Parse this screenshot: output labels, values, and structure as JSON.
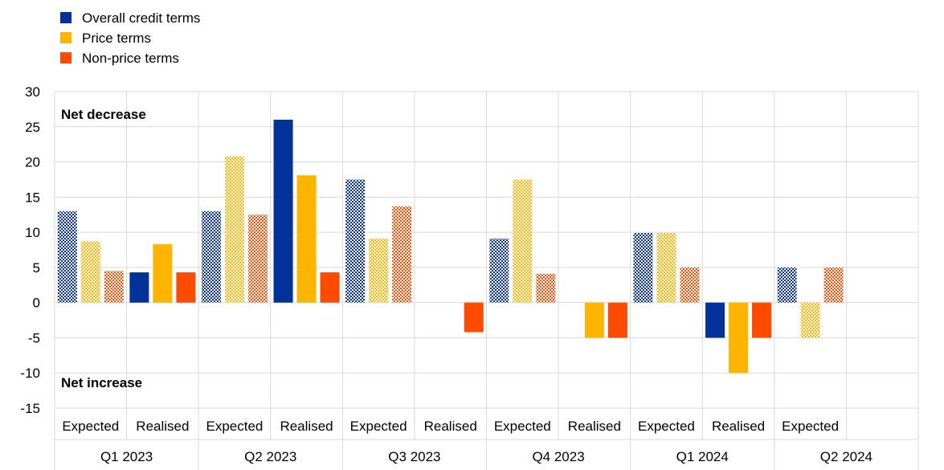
{
  "chart_data": {
    "type": "bar",
    "title": "",
    "xlabel": "",
    "ylabel": "",
    "ylim": [
      -15,
      30
    ],
    "yticks": [
      30,
      25,
      20,
      15,
      10,
      5,
      0,
      -5,
      -10,
      -15
    ],
    "legend": {
      "placement": "top-left"
    },
    "grid": true,
    "annotations": {
      "top": "Net decrease",
      "bottom": "Net increase"
    },
    "quarters": [
      "Q1 2023",
      "Q2 2023",
      "Q3 2023",
      "Q4 2023",
      "Q1 2024",
      "Q2 2024"
    ],
    "categories": [
      {
        "quarter": "Q1 2023",
        "label": "Expected",
        "pattern": true
      },
      {
        "quarter": "Q1 2023",
        "label": "Realised",
        "pattern": false
      },
      {
        "quarter": "Q2 2023",
        "label": "Expected",
        "pattern": true
      },
      {
        "quarter": "Q2 2023",
        "label": "Realised",
        "pattern": false
      },
      {
        "quarter": "Q3 2023",
        "label": "Expected",
        "pattern": true
      },
      {
        "quarter": "Q3 2023",
        "label": "Realised",
        "pattern": false
      },
      {
        "quarter": "Q4 2023",
        "label": "Expected",
        "pattern": true
      },
      {
        "quarter": "Q4 2023",
        "label": "Realised",
        "pattern": false
      },
      {
        "quarter": "Q1 2024",
        "label": "Expected",
        "pattern": true
      },
      {
        "quarter": "Q1 2024",
        "label": "Realised",
        "pattern": false
      },
      {
        "quarter": "Q2 2024",
        "label": "Expected",
        "pattern": true
      },
      {
        "quarter": "Q2 2024",
        "label": "",
        "pattern": false
      }
    ],
    "series": [
      {
        "name": "Overall credit terms",
        "color": "#003299",
        "values": [
          13,
          4.3,
          13,
          26,
          17.5,
          null,
          9.1,
          null,
          9.9,
          -5,
          5,
          null
        ]
      },
      {
        "name": "Price terms",
        "color": "#ffb400",
        "values": [
          8.7,
          8.3,
          20.8,
          18.1,
          9.1,
          null,
          17.5,
          -5,
          9.9,
          -10,
          -5,
          null
        ]
      },
      {
        "name": "Non-price terms",
        "color": "#ff4b00",
        "values": [
          4.5,
          4.3,
          12.5,
          4.3,
          13.7,
          -4.2,
          4.1,
          -5,
          5,
          -5,
          5,
          null
        ]
      }
    ]
  }
}
